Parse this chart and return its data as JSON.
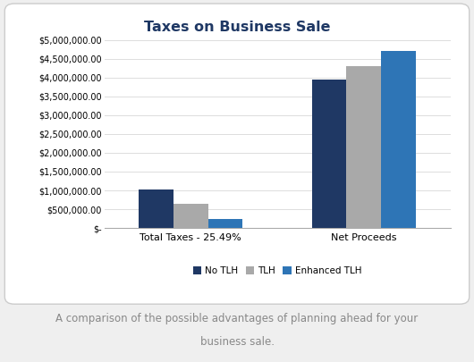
{
  "title": "Taxes on Business Sale",
  "categories": [
    "Total Taxes - 25.49%",
    "Net Proceeds"
  ],
  "series": [
    {
      "label": "No TLH",
      "color": "#1F3864",
      "values": [
        1020000,
        3950000
      ]
    },
    {
      "label": "TLH",
      "color": "#A9A9A9",
      "values": [
        650000,
        4300000
      ]
    },
    {
      "label": "Enhanced TLH",
      "color": "#2E75B6",
      "values": [
        250000,
        4700000
      ]
    }
  ],
  "ylim": [
    0,
    5000000
  ],
  "yticks": [
    0,
    500000,
    1000000,
    1500000,
    2000000,
    2500000,
    3000000,
    3500000,
    4000000,
    4500000,
    5000000
  ],
  "caption_line1": "A comparison of the possible advantages of planning ahead for your",
  "caption_line2": "business sale.",
  "title_color": "#1F3864",
  "title_fontsize": 11.5,
  "label_fontsize": 8,
  "tick_fontsize": 7,
  "legend_fontsize": 7.5,
  "caption_fontsize": 8.5,
  "caption_color": "#888888",
  "grid_color": "#DDDDDD",
  "bar_width": 0.18
}
